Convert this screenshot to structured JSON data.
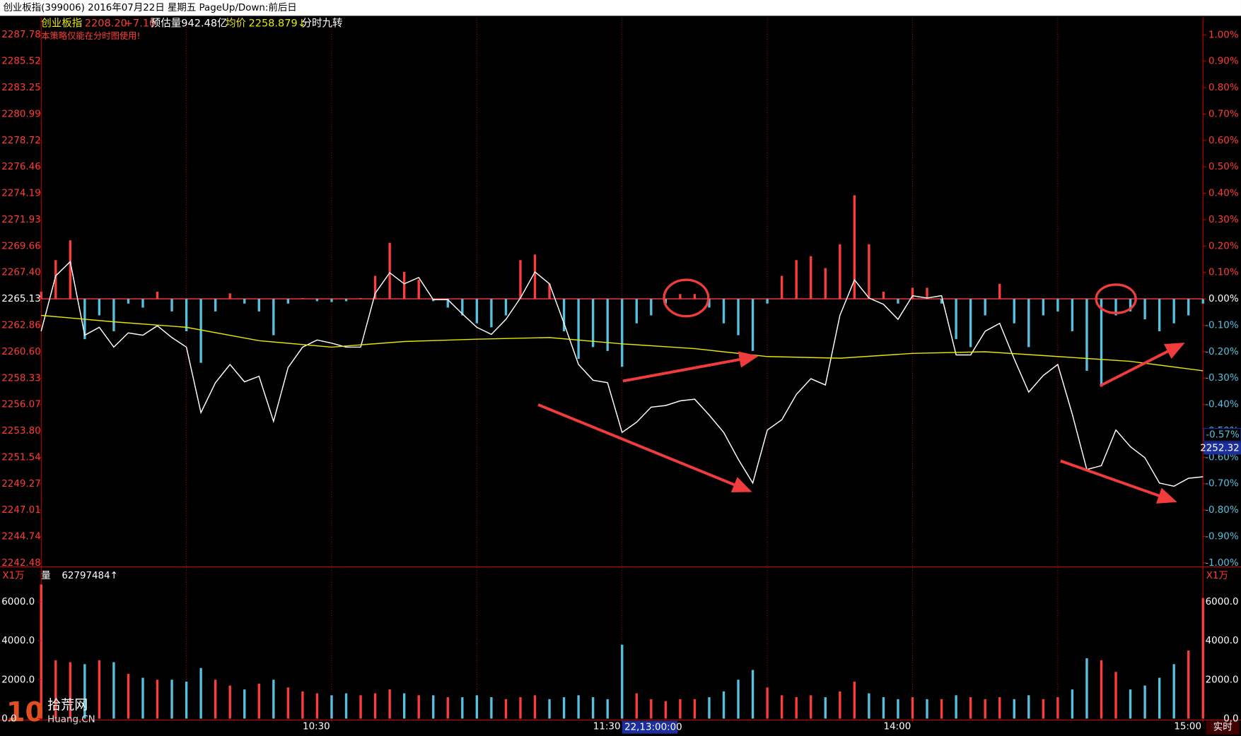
{
  "window_title": "创业板指(399006) 2016年07月22日 星期五 PageUp/Down:前后日",
  "info": {
    "name": "创业板指",
    "price": "2208.20",
    "change": "+7.10",
    "estimate": "预估量942.48亿",
    "avg_label": "均价",
    "avg_value": "2258.879↓",
    "indicator": "分时九转",
    "warning": "本策略仅能在分时图使用!"
  },
  "volume_info": {
    "unit": "X1万",
    "label": "量",
    "total": "62797484↑"
  },
  "watermark": {
    "logo": "10",
    "name": "拾荒网",
    "site": "Huang.CN"
  },
  "status": "实时",
  "chart_data": [
    {
      "type": "line",
      "xlim": [
        0,
        240
      ],
      "xticks": [
        {
          "value": 60,
          "label": "10:30"
        },
        {
          "value": 120,
          "label": "11:30"
        },
        {
          "value": 180,
          "label": "14:00"
        },
        {
          "value": 240,
          "label": "15:00"
        }
      ],
      "xgrid": [
        30,
        60,
        90,
        120,
        150,
        180,
        210
      ],
      "ylim": [
        2242.28,
        2289.27
      ],
      "yticks": [
        2287.78,
        2285.52,
        2283.25,
        2280.99,
        2278.72,
        2276.46,
        2274.19,
        2271.93,
        2269.66,
        {
          "value": 2267.4,
          "label": "2267.40"
        },
        2265.13,
        2262.86,
        {
          "value": 2260.6,
          "label": "2260.60"
        },
        2258.33,
        2256.07,
        {
          "value": 2253.8,
          "label": "2253.80"
        },
        2251.54,
        2249.27,
        2247.01,
        2244.74,
        2242.48
      ],
      "y2lim": [
        -1.009,
        1.066
      ],
      "y2ticks": [
        {
          "value": 1,
          "label": "1.00%"
        },
        {
          "value": 0.9,
          "label": "0.90%"
        },
        {
          "value": 0.8,
          "label": "0.80%"
        },
        {
          "value": 0.7,
          "label": "0.70%"
        },
        {
          "value": 0.6,
          "label": "0.60%"
        },
        {
          "value": 0.5,
          "label": "0.50%"
        },
        {
          "value": 0.4,
          "label": "0.40%"
        },
        {
          "value": 0.3,
          "label": "0.30%"
        },
        {
          "value": 0.2,
          "label": "0.20%"
        },
        {
          "value": 0.1,
          "label": "0.10%"
        },
        {
          "value": 0,
          "label": "0.00%"
        },
        {
          "value": -0.1,
          "label": "-0.10%"
        },
        {
          "value": -0.2,
          "label": "-0.20%"
        },
        {
          "value": -0.3,
          "label": "-0.30%"
        },
        {
          "value": -0.4,
          "label": "-0.40%"
        },
        {
          "value": -0.5,
          "label": "-0.50%"
        },
        {
          "value": -0.6,
          "label": "-0.60%"
        },
        {
          "value": -0.7,
          "label": "-0.70%"
        },
        {
          "value": -0.8,
          "label": "-0.80%"
        },
        {
          "value": -0.9,
          "label": "-0.90%"
        },
        {
          "value": -1,
          "label": "-1.00%"
        }
      ],
      "up_color": "#ff3c3c",
      "down_color": "#55c0e0",
      "flat_color": "#ffffff",
      "series": [
        {
          "type": "bar",
          "base": 2265.13,
          "x": [
            0,
            3,
            6,
            9,
            12,
            15,
            18,
            21,
            24,
            27,
            30,
            33,
            36,
            39,
            42,
            45,
            48,
            51,
            54,
            57,
            60,
            63,
            66,
            69,
            72,
            75,
            78,
            81,
            84,
            87,
            90,
            93,
            96,
            99,
            102,
            105,
            108,
            111,
            114,
            117,
            120,
            123,
            126,
            129,
            132,
            135,
            138,
            141,
            144,
            147,
            150,
            153,
            156,
            159,
            162,
            165,
            168,
            171,
            174,
            177,
            180,
            183,
            186,
            189,
            192,
            195,
            198,
            201,
            204,
            207,
            210,
            213,
            216,
            219,
            222,
            225,
            228,
            231,
            234,
            237,
            240
          ],
          "values": [
            2265.74,
            2268.45,
            2270.15,
            2261.67,
            2263.71,
            2262.35,
            2264.72,
            2264.38,
            2265.74,
            2264.05,
            2262.35,
            2259.64,
            2264.05,
            2265.6,
            2264.72,
            2264.05,
            2262.01,
            2264.72,
            2265.2,
            2264.93,
            2264.86,
            2264.93,
            2265.2,
            2267.1,
            2269.94,
            2267.44,
            2266.76,
            2264.93,
            2264.38,
            2263.71,
            2263.03,
            2262.69,
            2263.71,
            2268.45,
            2268.93,
            2266.42,
            2262.35,
            2259.98,
            2260.99,
            2260.66,
            2259.3,
            2263.03,
            2263.71,
            2264.72,
            2265.54,
            2265.54,
            2264.38,
            2263.03,
            2262.01,
            2260.66,
            2264.72,
            2267.1,
            2268.45,
            2268.79,
            2267.77,
            2269.81,
            2274.01,
            2269.81,
            2265.74,
            2264.72,
            2266.08,
            2266.08,
            2264.72,
            2261.67,
            2260.99,
            2263.71,
            2266.42,
            2263.03,
            2260.99,
            2263.71,
            2264.05,
            2262.35,
            2258.96,
            2257.6,
            2263.71,
            2264.05,
            2263.37,
            2262.35,
            2263.03,
            2263.71,
            2264.72
          ]
        },
        {
          "type": "line",
          "color": "#ffffff",
          "x": [
            0,
            3,
            6,
            9,
            12,
            15,
            18,
            21,
            24,
            27,
            30,
            33,
            36,
            39,
            42,
            45,
            48,
            51,
            54,
            57,
            60,
            63,
            66,
            69,
            72,
            75,
            78,
            81,
            84,
            87,
            90,
            93,
            96,
            99,
            102,
            105,
            108,
            111,
            114,
            117,
            120,
            123,
            126,
            129,
            132,
            135,
            138,
            141,
            144,
            147,
            150,
            153,
            156,
            159,
            162,
            165,
            168,
            171,
            174,
            177,
            180,
            183,
            186,
            189,
            192,
            195,
            198,
            201,
            204,
            207,
            210,
            213,
            216,
            219,
            222,
            225,
            228,
            231,
            234,
            237,
            240
          ],
          "values": [
            2262.35,
            2267.1,
            2268.32,
            2262.01,
            2262.69,
            2260.99,
            2262.21,
            2262.01,
            2262.82,
            2261.81,
            2260.99,
            2255.37,
            2257.94,
            2259.5,
            2258.01,
            2258.49,
            2254.62,
            2259.23,
            2260.99,
            2261.6,
            2261.33,
            2260.99,
            2260.99,
            2265.6,
            2267.37,
            2266.42,
            2266.96,
            2265.06,
            2265.06,
            2263.84,
            2262.69,
            2262.08,
            2263.37,
            2265.2,
            2267.44,
            2266.42,
            2263.03,
            2259.5,
            2258.15,
            2257.94,
            2253.67,
            2254.55,
            2255.84,
            2255.98,
            2256.38,
            2256.52,
            2255.16,
            2253.67,
            2251.37,
            2249.33,
            2253.88,
            2254.76,
            2256.93,
            2258.28,
            2257.74,
            2263.71,
            2266.76,
            2265.2,
            2264.66,
            2263.37,
            2265.4,
            2265.2,
            2265.4,
            2260.32,
            2260.32,
            2262.35,
            2263.03,
            2259.98,
            2257.13,
            2258.55,
            2259.5,
            2255.23,
            2250.49,
            2250.82,
            2253.88,
            2252.45,
            2251.5,
            2249.33,
            2249.06,
            2249.74,
            2249.87
          ]
        },
        {
          "type": "line",
          "color": "#e6e600",
          "x": [
            0,
            15,
            30,
            45,
            60,
            75,
            90,
            105,
            120,
            135,
            150,
            165,
            180,
            195,
            210,
            225,
            240
          ],
          "values": [
            2263.71,
            2263.16,
            2262.69,
            2261.54,
            2260.99,
            2261.47,
            2261.67,
            2261.81,
            2261.27,
            2260.86,
            2260.18,
            2260.04,
            2260.45,
            2260.59,
            2260.18,
            2259.77,
            2258.96
          ]
        }
      ],
      "cursor": {
        "time": 120,
        "time_label": "22,13:00:00",
        "percent": {
          "value": -0.57,
          "label": "-0.57%"
        },
        "price": 2252.32
      }
    },
    {
      "type": "bar",
      "ylim": [
        0,
        7600
      ],
      "yticks": [
        {
          "value": 6000,
          "label": "6000.0"
        },
        {
          "value": 4000,
          "label": "4000.0"
        },
        {
          "value": 2000,
          "label": "2000.0"
        },
        {
          "value": 0,
          "label": "0.0"
        }
      ],
      "x": [
        0,
        3,
        6,
        9,
        12,
        15,
        18,
        21,
        24,
        27,
        30,
        33,
        36,
        39,
        42,
        45,
        48,
        51,
        54,
        57,
        60,
        63,
        66,
        69,
        72,
        75,
        78,
        81,
        84,
        87,
        90,
        93,
        96,
        99,
        102,
        105,
        108,
        111,
        114,
        117,
        120,
        123,
        126,
        129,
        132,
        135,
        138,
        141,
        144,
        147,
        150,
        153,
        156,
        159,
        162,
        165,
        168,
        171,
        174,
        177,
        180,
        183,
        186,
        189,
        192,
        195,
        198,
        201,
        204,
        207,
        210,
        213,
        216,
        219,
        222,
        225,
        228,
        231,
        234,
        237,
        240
      ],
      "values": [
        6900,
        3000,
        2900,
        2800,
        3000,
        2900,
        2300,
        2100,
        2000,
        2000,
        1900,
        2600,
        2000,
        1700,
        1500,
        1800,
        2000,
        1600,
        1400,
        1300,
        1200,
        1300,
        1200,
        1300,
        1500,
        1300,
        1200,
        1200,
        1100,
        1100,
        1200,
        1100,
        1000,
        1100,
        1200,
        1000,
        1100,
        1200,
        1100,
        1000,
        3800,
        1300,
        1000,
        900,
        1000,
        1000,
        1100,
        1400,
        2000,
        2500,
        1600,
        1200,
        1100,
        1200,
        1100,
        1400,
        1900,
        1300,
        1100,
        1000,
        1100,
        1000,
        1000,
        1200,
        1100,
        1000,
        1100,
        1000,
        1200,
        1000,
        1100,
        1500,
        3100,
        3000,
        2400,
        1500,
        1700,
        2100,
        2800,
        3500,
        6200
      ]
    }
  ]
}
